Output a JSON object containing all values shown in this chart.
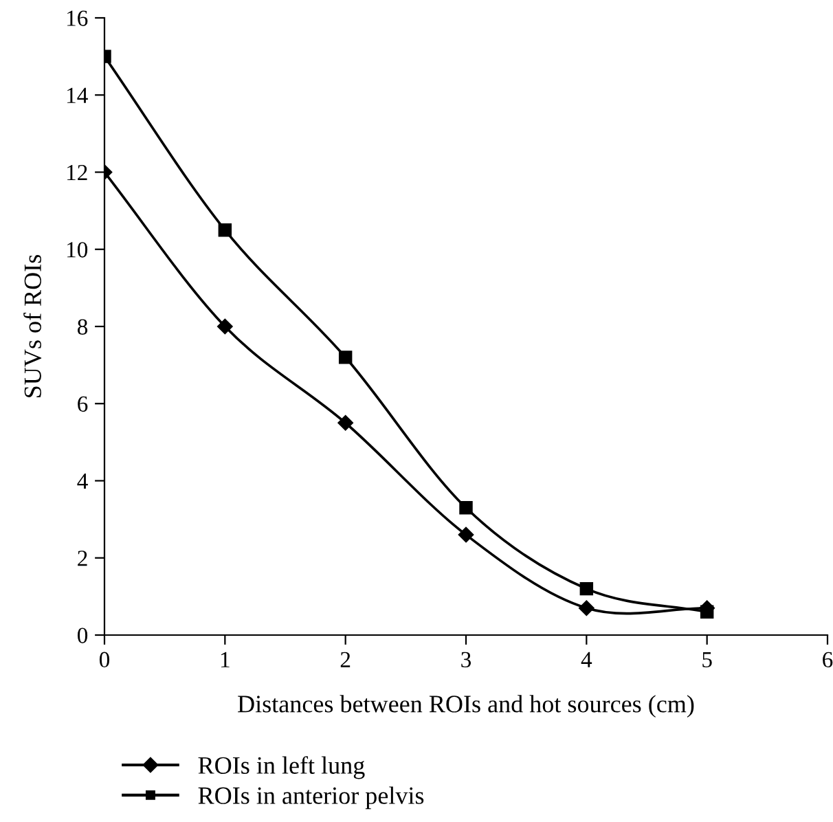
{
  "chart_data": {
    "type": "line",
    "xlabel": "Distances between ROIs and hot sources (cm)",
    "ylabel": "SUVs of ROIs",
    "x": [
      0,
      1,
      2,
      3,
      4,
      5
    ],
    "series": [
      {
        "name": "ROIs in left lung",
        "color": "#000000",
        "marker": "diamond",
        "values": [
          12,
          8,
          5.5,
          2.6,
          0.7,
          0.7
        ]
      },
      {
        "name": "ROIs in anterior pelvis",
        "color": "#000000",
        "marker": "square",
        "values": [
          15,
          10.5,
          7.2,
          3.3,
          1.2,
          0.6
        ]
      }
    ],
    "xlim": [
      0,
      6
    ],
    "xticks": [
      0,
      1,
      2,
      3,
      4,
      5,
      6
    ],
    "ylim": [
      0,
      16
    ],
    "yticks": [
      0,
      2,
      4,
      6,
      8,
      10,
      12,
      14,
      16
    ],
    "grid": false,
    "legend": "bottom",
    "line_style": "solid"
  }
}
